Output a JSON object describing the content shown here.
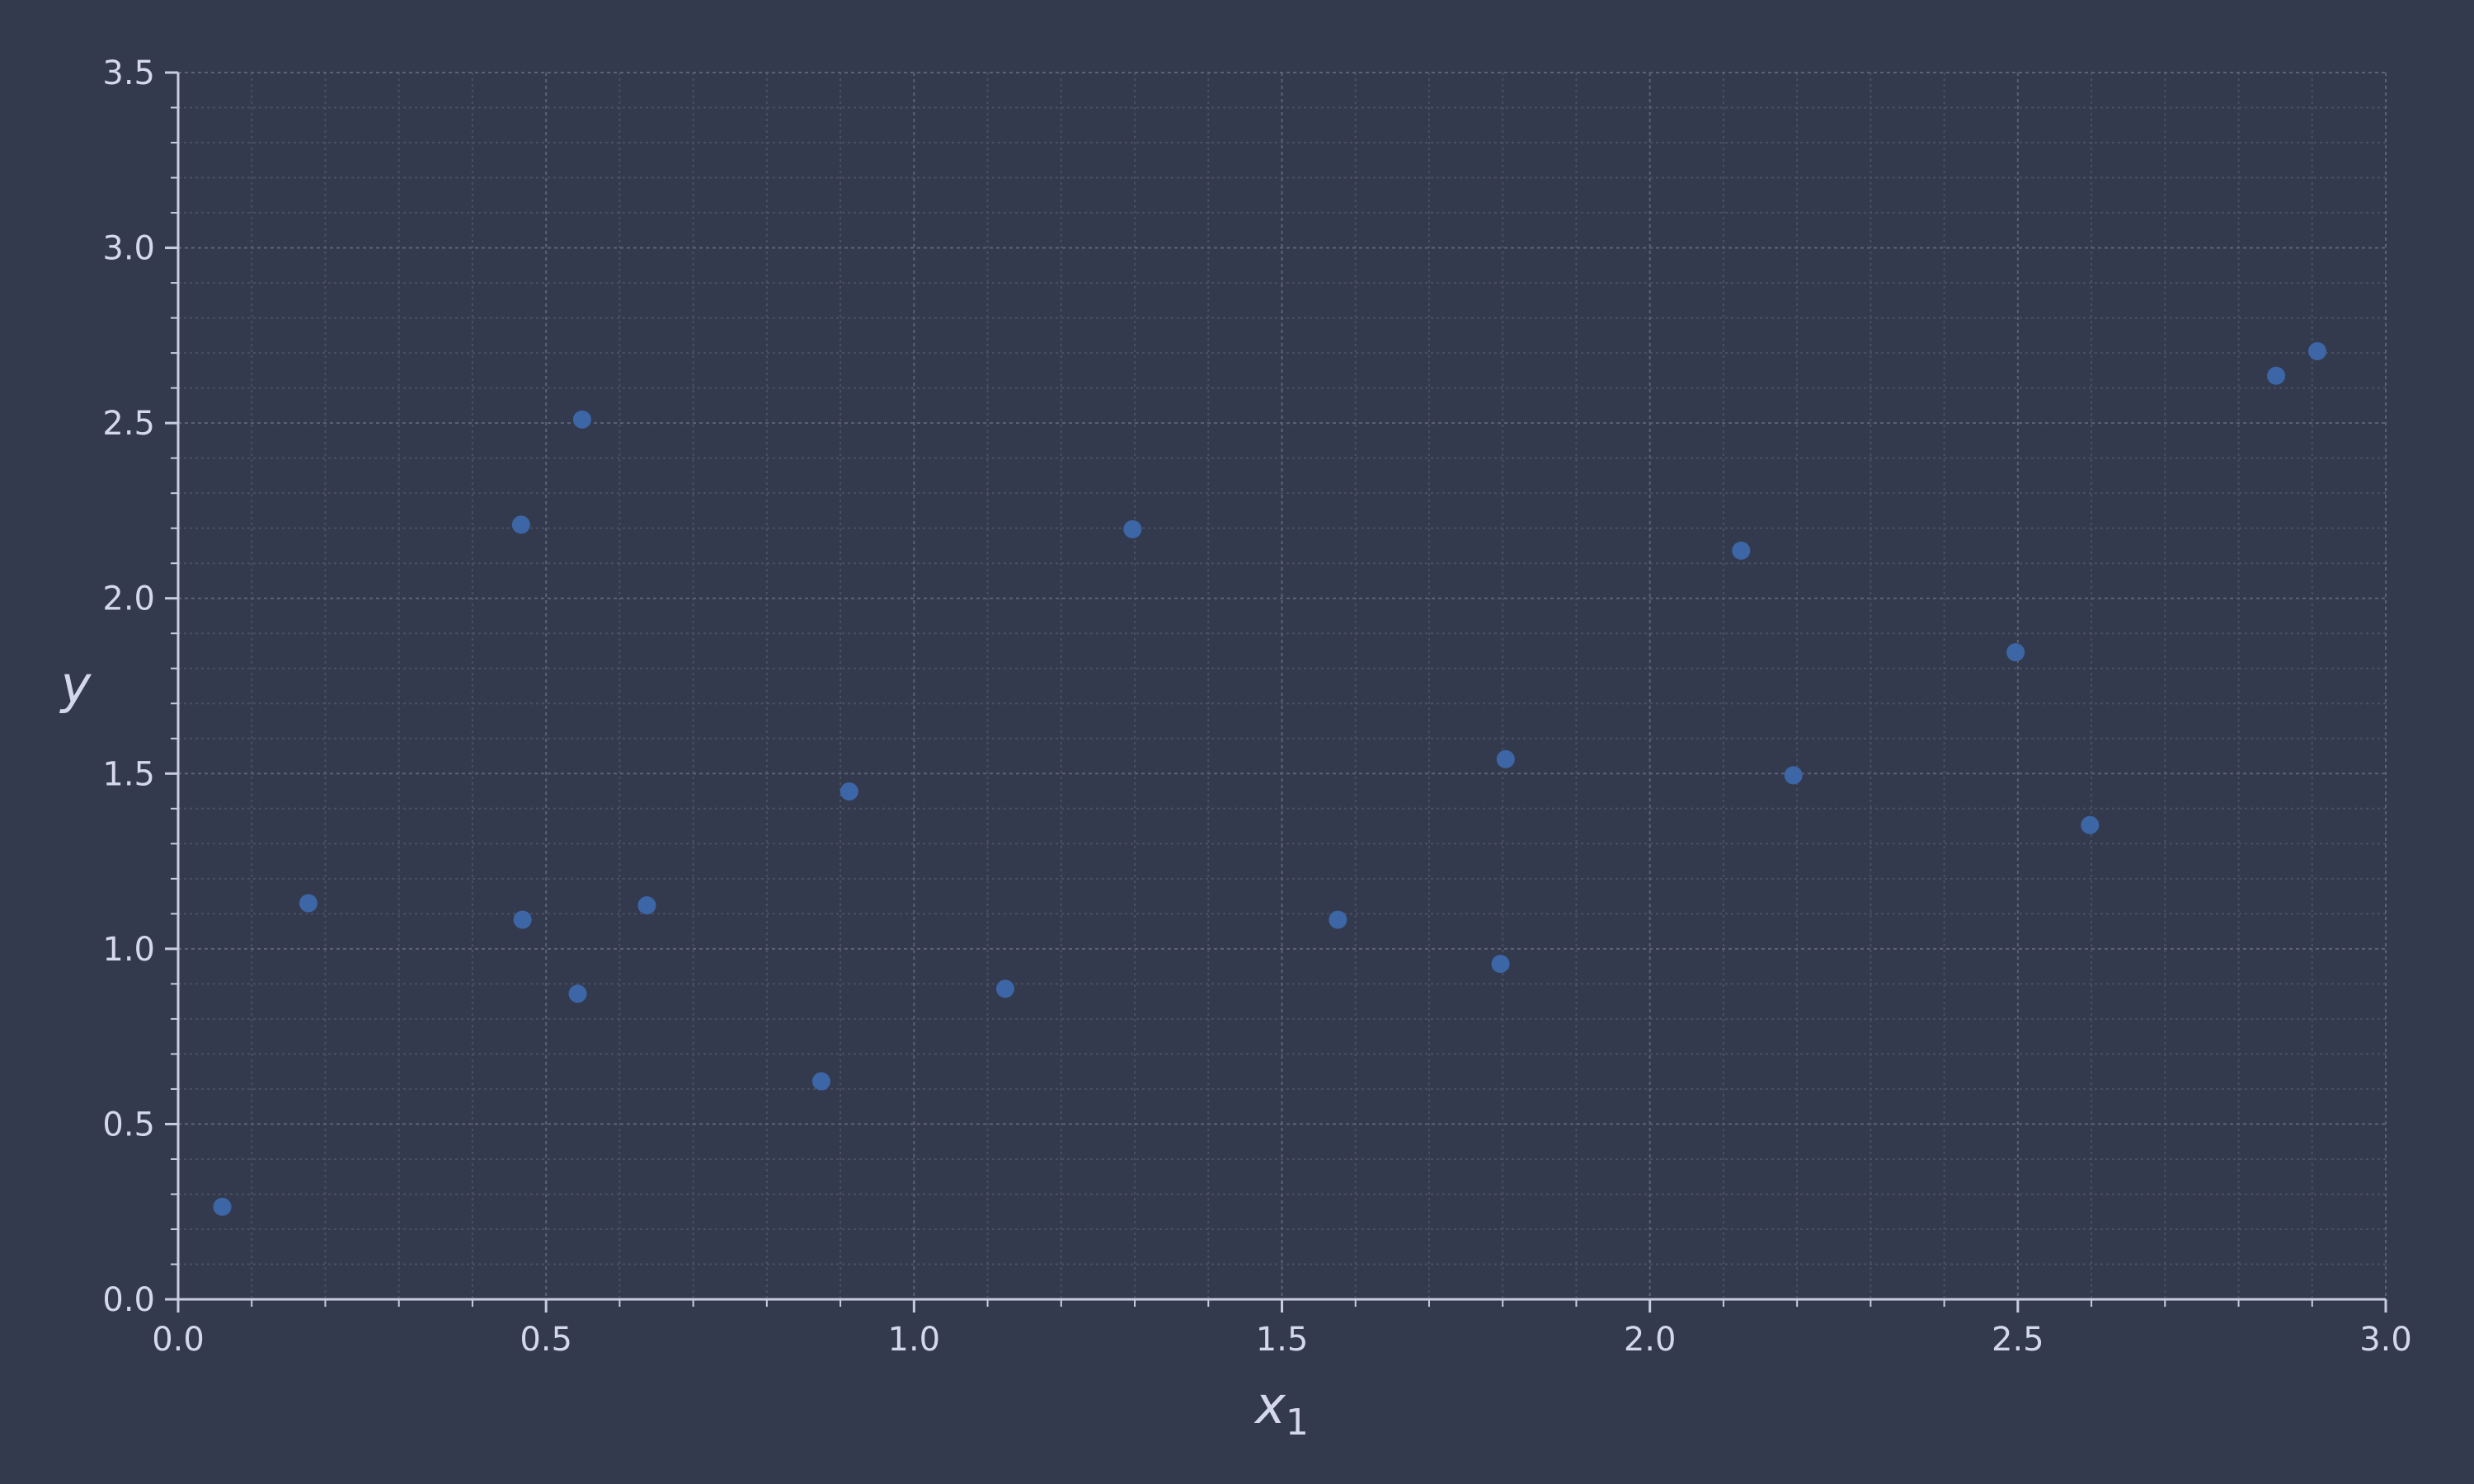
{
  "colors": {
    "background": "#343a4e",
    "grid_major": "#5c6178",
    "grid_minor": "#4a4f64",
    "axis": "#c8cce0",
    "text": "#d4d8ea",
    "point": "#3c66a6"
  },
  "chart_data": {
    "type": "scatter",
    "title": "",
    "xlabel": "x",
    "xlabel_subscript": "1",
    "ylabel": "y",
    "xlim": [
      0.0,
      3.0
    ],
    "ylim": [
      0.0,
      3.5
    ],
    "x_ticks": [
      0.0,
      0.5,
      1.0,
      1.5,
      2.0,
      2.5,
      3.0
    ],
    "x_tick_labels": [
      "0.0",
      "0.5",
      "1.0",
      "1.5",
      "2.0",
      "2.5",
      "3.0"
    ],
    "y_ticks": [
      0.0,
      0.5,
      1.0,
      1.5,
      2.0,
      2.5,
      3.0,
      3.5
    ],
    "y_tick_labels": [
      "0.0",
      "0.5",
      "1.0",
      "1.5",
      "2.0",
      "2.5",
      "3.0",
      "3.5"
    ],
    "x_minor_step": 0.1,
    "y_minor_step": 0.1,
    "grid": true,
    "legend": "none",
    "series": [
      {
        "x": [
          0.06,
          0.177,
          0.466,
          0.468,
          0.543,
          0.549,
          0.637,
          0.874,
          0.912,
          1.124,
          1.297,
          1.576,
          1.797,
          1.804,
          2.124,
          2.195,
          2.497,
          2.598,
          2.851,
          2.907
        ],
        "y": [
          0.264,
          1.13,
          2.21,
          1.083,
          0.872,
          2.51,
          1.124,
          0.622,
          1.449,
          0.886,
          2.197,
          1.083,
          0.957,
          1.541,
          2.136,
          1.495,
          1.846,
          1.353,
          2.635,
          2.705
        ]
      }
    ]
  }
}
